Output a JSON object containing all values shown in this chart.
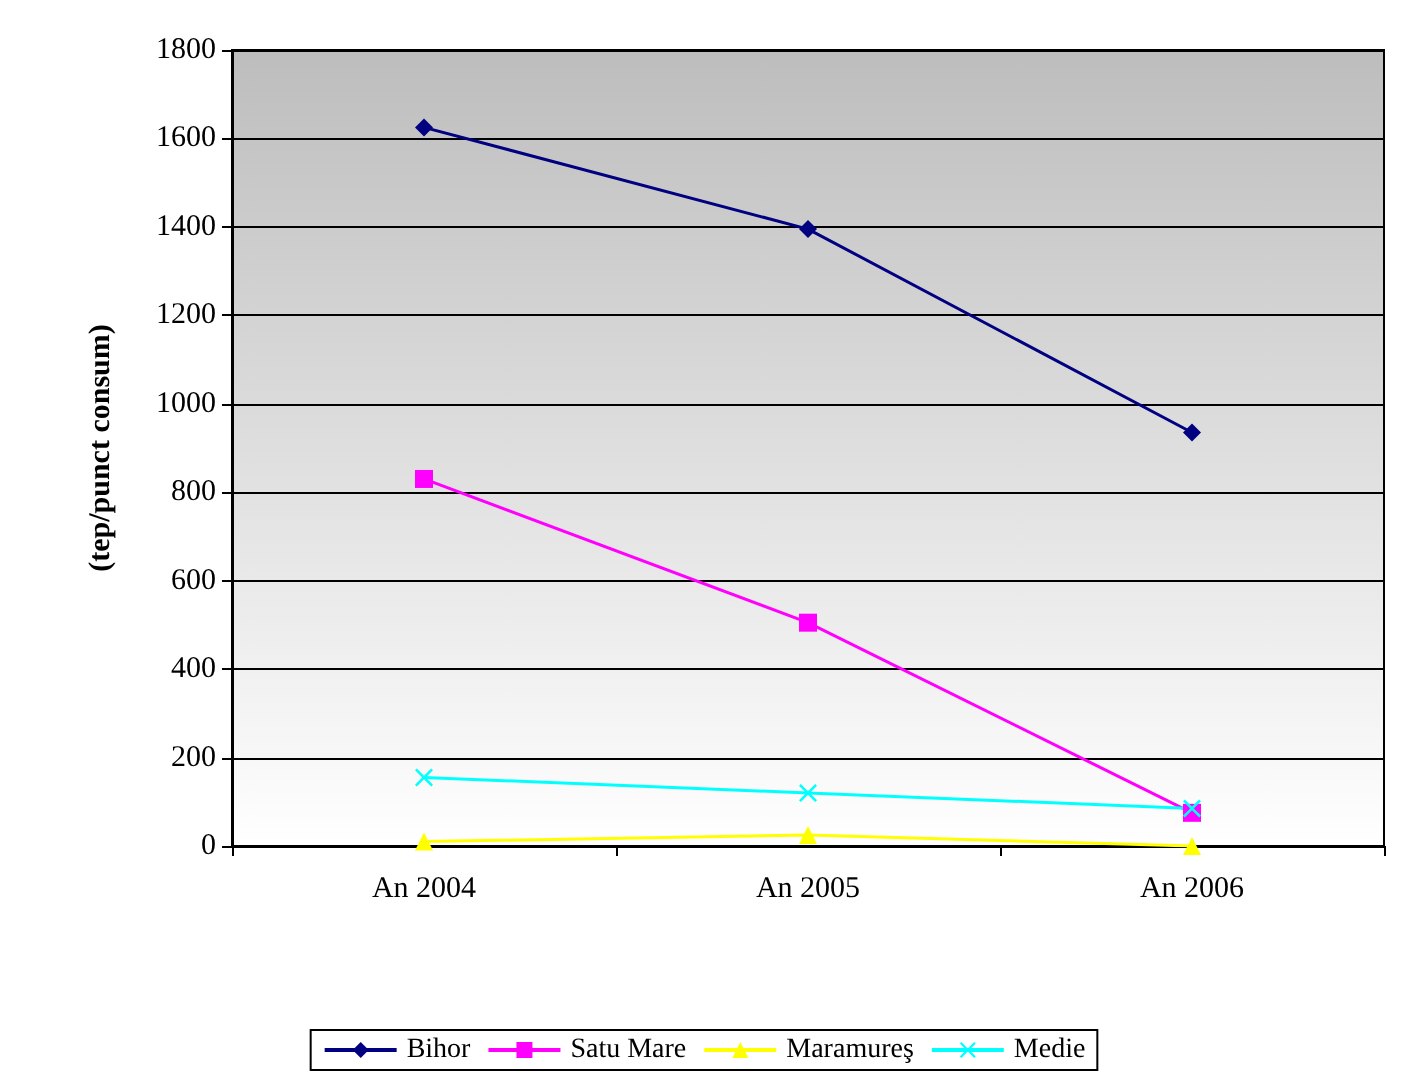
{
  "chart_data": {
    "type": "line",
    "ylabel": "(tep/punct consum)",
    "categories": [
      "An 2004",
      "An 2005",
      "An 2006"
    ],
    "series": [
      {
        "name": "Bihor",
        "color": "#000080",
        "marker": "diamond",
        "values": [
          1625,
          1395,
          935
        ]
      },
      {
        "name": "Satu Mare",
        "color": "#ff00ff",
        "marker": "square",
        "values": [
          830,
          505,
          75
        ]
      },
      {
        "name": "Maramureş",
        "color": "#ffff00",
        "marker": "triangle",
        "values": [
          10,
          25,
          0
        ]
      },
      {
        "name": "Medie",
        "color": "#00ffff",
        "marker": "cross",
        "values": [
          155,
          120,
          85
        ]
      }
    ],
    "ylim": [
      0,
      1800
    ],
    "yticks": [
      0,
      200,
      400,
      600,
      800,
      1000,
      1200,
      1400,
      1600,
      1800
    ],
    "grid": "y",
    "legend": "bottom"
  }
}
